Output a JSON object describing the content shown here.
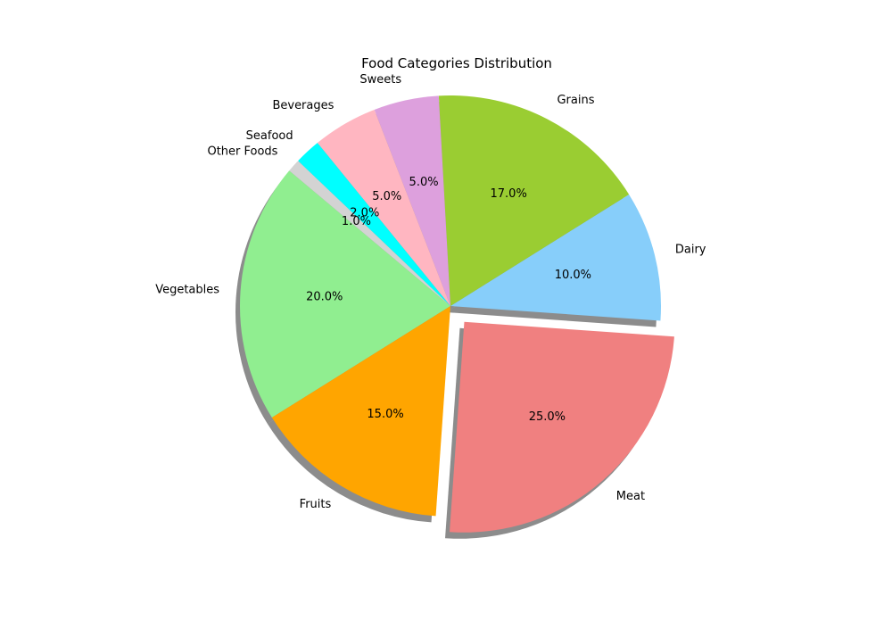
{
  "chart_data": {
    "type": "pie",
    "title": "Food Categories Distribution",
    "start_angle_deg": 140,
    "shadow": true,
    "slices": [
      {
        "label": "Vegetables",
        "value": 20.0,
        "pct_text": "20.0%",
        "color": "#90EE90",
        "explode": 0
      },
      {
        "label": "Fruits",
        "value": 15.0,
        "pct_text": "15.0%",
        "color": "#FFA500",
        "explode": 0
      },
      {
        "label": "Meat",
        "value": 25.0,
        "pct_text": "25.0%",
        "color": "#F08080",
        "explode": 0.1
      },
      {
        "label": "Dairy",
        "value": 10.0,
        "pct_text": "10.0%",
        "color": "#87CEFA",
        "explode": 0
      },
      {
        "label": "Grains",
        "value": 17.0,
        "pct_text": "17.0%",
        "color": "#9ACD32",
        "explode": 0
      },
      {
        "label": "Sweets",
        "value": 5.0,
        "pct_text": "5.0%",
        "color": "#DDA0DD",
        "explode": 0
      },
      {
        "label": "Beverages",
        "value": 5.0,
        "pct_text": "5.0%",
        "color": "#FFB6C1",
        "explode": 0
      },
      {
        "label": "Seafood",
        "value": 2.0,
        "pct_text": "2.0%",
        "color": "#00FFFF",
        "explode": 0
      },
      {
        "label": "Other Foods",
        "value": 1.0,
        "pct_text": "1.0%",
        "color": "#D3D3D3",
        "explode": 0
      }
    ]
  }
}
